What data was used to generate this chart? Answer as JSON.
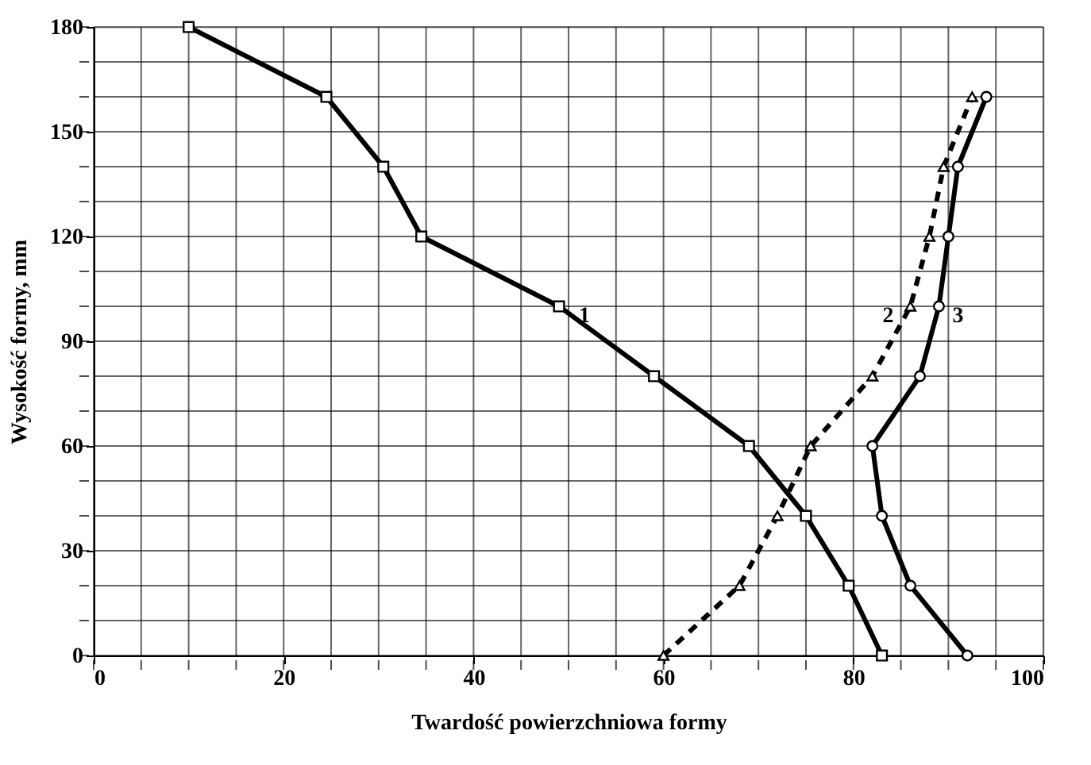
{
  "chart_data": {
    "type": "line",
    "xlabel": "Twardość powierzchniowa formy",
    "ylabel": "Wysokość formy, mm",
    "xlim": [
      0,
      100
    ],
    "ylim": [
      0,
      180
    ],
    "xticks": [
      0,
      {
        "value": 5,
        "label": null
      },
      {
        "value": 10,
        "label": null
      },
      {
        "value": 15,
        "label": null
      },
      20,
      {
        "value": 25,
        "label": null
      },
      {
        "value": 30,
        "label": null
      },
      {
        "value": 35,
        "label": null
      },
      40,
      {
        "value": 45,
        "label": null
      },
      {
        "value": 50,
        "label": null
      },
      {
        "value": 55,
        "label": null
      },
      60,
      {
        "value": 65,
        "label": null
      },
      {
        "value": 70,
        "label": null
      },
      {
        "value": 75,
        "label": null
      },
      80,
      {
        "value": 85,
        "label": null
      },
      {
        "value": 90,
        "label": null
      },
      {
        "value": 95,
        "label": null
      },
      100
    ],
    "yticks": [
      0,
      {
        "value": 10,
        "label": null
      },
      {
        "value": 20,
        "label": null
      },
      30,
      {
        "value": 40,
        "label": null
      },
      {
        "value": 50,
        "label": null
      },
      60,
      {
        "value": 70,
        "label": null
      },
      {
        "value": 80,
        "label": null
      },
      90,
      {
        "value": 100,
        "label": null
      },
      {
        "value": 110,
        "label": null
      },
      120,
      {
        "value": 130,
        "label": null
      },
      {
        "value": 140,
        "label": null
      },
      150,
      {
        "value": 160,
        "label": null
      },
      {
        "value": 170,
        "label": null
      },
      180
    ],
    "grid": true,
    "series": [
      {
        "name": "1",
        "color": "#000000",
        "marker": "square",
        "line_style": "solid",
        "x": [
          83,
          79.5,
          75,
          69,
          59,
          49,
          34.5,
          30.5,
          24.5,
          10
        ],
        "values": [
          0,
          20,
          40,
          60,
          80,
          100,
          120,
          140,
          160,
          180
        ]
      },
      {
        "name": "2",
        "color": "#000000",
        "marker": "triangle",
        "line_style": "dashed",
        "x": [
          60,
          68,
          72,
          75.5,
          82,
          86,
          88,
          89.5,
          92.5
        ],
        "values": [
          0,
          20,
          40,
          60,
          80,
          100,
          120,
          140,
          160
        ]
      },
      {
        "name": "3",
        "color": "#000000",
        "marker": "circle",
        "line_style": "solid",
        "x": [
          92,
          86,
          83,
          82,
          87,
          89,
          90,
          91,
          94
        ],
        "values": [
          0,
          20,
          40,
          60,
          80,
          100,
          120,
          140,
          160
        ]
      }
    ]
  }
}
